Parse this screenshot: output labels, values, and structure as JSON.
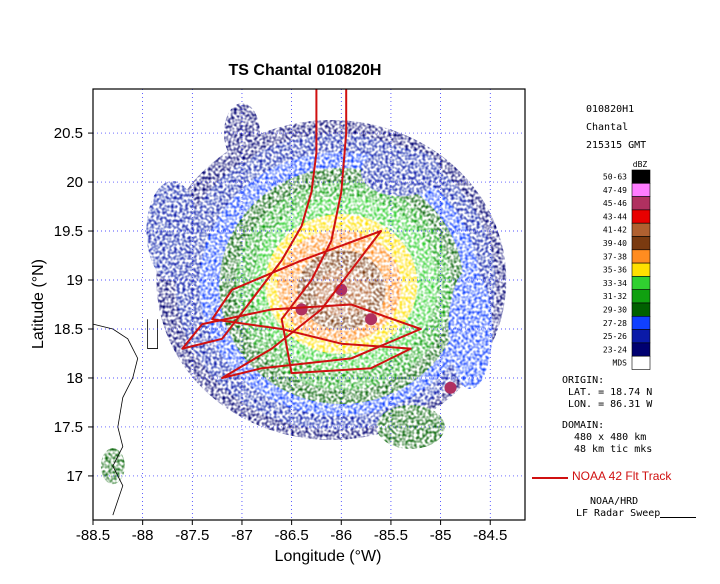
{
  "chart_data": {
    "type": "heatmap",
    "title": "TS Chantal 010820H",
    "xlabel": "Longitude (°W)",
    "ylabel": "Latitude (°N)",
    "xlim": [
      -88.5,
      -84.15
    ],
    "ylim": [
      16.55,
      20.95
    ],
    "x_ticks": [
      -88.5,
      -88,
      -87.5,
      -87,
      -86.5,
      -86,
      -85.5,
      -85,
      -84.5
    ],
    "x_tick_labels": [
      "-88.5",
      "-88",
      "-87.5",
      "-87",
      "-86.5",
      "-86",
      "-85.5",
      "-85",
      "-84.5"
    ],
    "y_ticks": [
      17,
      17.5,
      18,
      18.5,
      19,
      19.5,
      20,
      20.5
    ],
    "y_tick_labels": [
      "17",
      "17.5",
      "18",
      "18.5",
      "19",
      "19.5",
      "20",
      "20.5"
    ],
    "grid": true,
    "storm_center": {
      "lat": 19.0,
      "lon": -86.1
    },
    "scale": {
      "unit": "dBZ",
      "bins": [
        {
          "label": "50-63",
          "color": "#000000"
        },
        {
          "label": "47-49",
          "color": "#ff7cff"
        },
        {
          "label": "45-46",
          "color": "#b03060"
        },
        {
          "label": "43-44",
          "color": "#e80000"
        },
        {
          "label": "41-42",
          "color": "#b06030"
        },
        {
          "label": "39-40",
          "color": "#7a3a10"
        },
        {
          "label": "37-38",
          "color": "#ff8c20"
        },
        {
          "label": "35-36",
          "color": "#ffe000"
        },
        {
          "label": "33-34",
          "color": "#30d030"
        },
        {
          "label": "31-32",
          "color": "#10a010"
        },
        {
          "label": "29-30",
          "color": "#006000"
        },
        {
          "label": "27-28",
          "color": "#1040ff"
        },
        {
          "label": "25-26",
          "color": "#0a1aa8"
        },
        {
          "label": "23-24",
          "color": "#000070"
        },
        {
          "label": "MDS",
          "color": "#ffffff"
        }
      ]
    },
    "flight_track": {
      "name": "NOAA 42 Flt Track",
      "color": "#d01010",
      "points": [
        [
          -86.25,
          20.95
        ],
        [
          -86.25,
          20.3
        ],
        [
          -86.3,
          19.9
        ],
        [
          -86.4,
          19.55
        ],
        [
          -86.6,
          19.2
        ],
        [
          -86.9,
          18.8
        ],
        [
          -87.2,
          18.4
        ],
        [
          -87.6,
          18.3
        ],
        [
          -87.4,
          18.55
        ],
        [
          -86.7,
          18.7
        ],
        [
          -85.9,
          18.75
        ],
        [
          -85.2,
          18.5
        ],
        [
          -85.9,
          18.2
        ],
        [
          -86.8,
          18.1
        ],
        [
          -87.2,
          18.0
        ],
        [
          -86.7,
          18.3
        ],
        [
          -86.2,
          18.7
        ],
        [
          -85.9,
          19.1
        ],
        [
          -85.6,
          19.5
        ],
        [
          -86.4,
          19.2
        ],
        [
          -87.1,
          18.9
        ],
        [
          -87.3,
          18.6
        ],
        [
          -86.6,
          18.5
        ],
        [
          -86.0,
          18.35
        ],
        [
          -85.3,
          18.3
        ],
        [
          -85.7,
          18.1
        ],
        [
          -86.5,
          18.05
        ],
        [
          -86.6,
          18.6
        ],
        [
          -86.3,
          19.0
        ],
        [
          -86.1,
          19.4
        ],
        [
          -86.0,
          19.9
        ],
        [
          -85.95,
          20.5
        ],
        [
          -85.95,
          20.95
        ]
      ]
    }
  },
  "info": {
    "id": "010820H1",
    "storm": "Chantal",
    "time": "215315 GMT",
    "origin_label": "ORIGIN:",
    "origin_lat": "LAT. =  18.74 N",
    "origin_lon": "LON. =  86.31 W",
    "domain_label": "DOMAIN:",
    "domain_size": "480 x  480 km",
    "domain_tics": "48 km tic mks"
  },
  "credits": {
    "org": "NOAA/HRD",
    "product": "LF Radar Sweep"
  }
}
